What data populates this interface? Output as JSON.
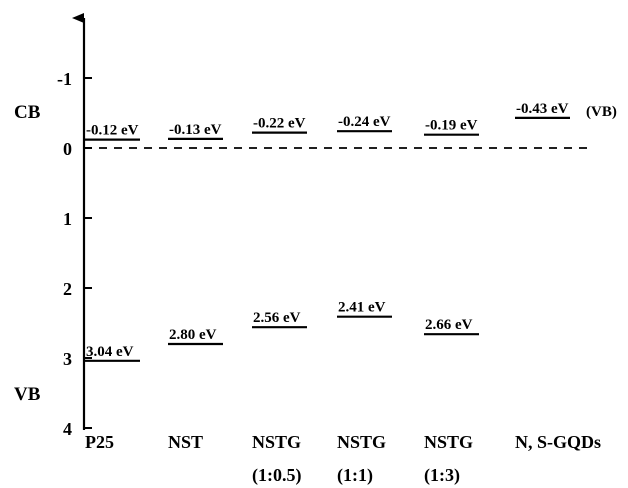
{
  "chart_data": {
    "type": "band-edge diagram",
    "y_axis": {
      "ylim": [
        -1.7,
        4
      ],
      "ticks": [
        "-1",
        "0",
        "1",
        "2",
        "3",
        "4"
      ],
      "tick_values": [
        -1,
        0,
        1,
        2,
        3,
        4
      ],
      "inverted": true,
      "reference_line": {
        "value": 0,
        "style": "dashed"
      }
    },
    "side_labels": {
      "cb": "CB",
      "vb": "VB"
    },
    "categories": [
      {
        "name": "P25",
        "sub": ""
      },
      {
        "name": "NST",
        "sub": ""
      },
      {
        "name": "NSTG",
        "sub": "(1:0.5)"
      },
      {
        "name": "NSTG",
        "sub": "(1:1)"
      },
      {
        "name": "NSTG",
        "sub": "(1:3)"
      },
      {
        "name": "N, S-GQDs",
        "sub": ""
      }
    ],
    "series": [
      {
        "name": "CB",
        "values": [
          -0.12,
          -0.13,
          -0.22,
          -0.24,
          -0.19,
          -0.43
        ],
        "labels": [
          "-0.12 eV",
          "-0.13 eV",
          "-0.22 eV",
          "-0.24 eV",
          "-0.19 eV",
          "-0.43 eV"
        ]
      },
      {
        "name": "VB",
        "values": [
          3.04,
          2.8,
          2.56,
          2.41,
          2.66,
          null
        ],
        "labels": [
          "3.04 eV",
          "2.80 eV",
          "2.56 eV",
          "2.41 eV",
          "2.66 eV",
          ""
        ]
      }
    ],
    "annotations": [
      "(VB)"
    ]
  }
}
